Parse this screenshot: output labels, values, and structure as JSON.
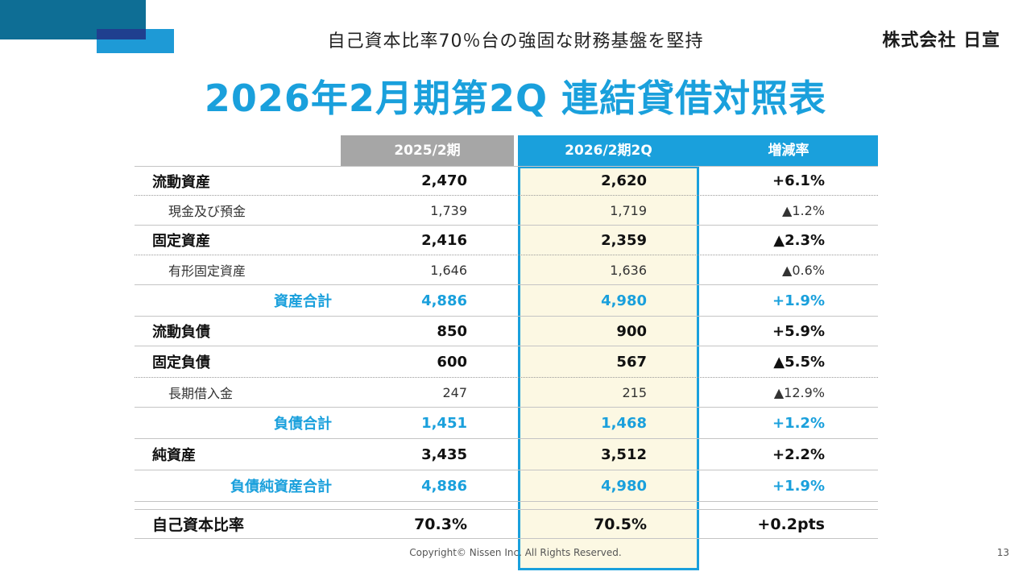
{
  "header": {
    "subtitle": "自己資本比率70％台の強固な財務基盤を堅持",
    "company": "株式会社 日宣",
    "title": "2026年2月期第2Q 連結貸借対照表"
  },
  "table": {
    "columns": {
      "prev": "2025/2期",
      "current": "2026/2期2Q",
      "rate": "増減率"
    },
    "rows": [
      {
        "label": "流動資産",
        "prev": "2,470",
        "current": "2,620",
        "rate": "+6.1%"
      },
      {
        "label": "現金及び預金",
        "prev": "1,739",
        "current": "1,719",
        "rate": "▲1.2%"
      },
      {
        "label": "固定資産",
        "prev": "2,416",
        "current": "2,359",
        "rate": "▲2.3%"
      },
      {
        "label": "有形固定資産",
        "prev": "1,646",
        "current": "1,636",
        "rate": "▲0.6%"
      },
      {
        "label": "資産合計",
        "prev": "4,886",
        "current": "4,980",
        "rate": "+1.9%"
      },
      {
        "label": "流動負債",
        "prev": "850",
        "current": "900",
        "rate": "+5.9%"
      },
      {
        "label": "固定負債",
        "prev": "600",
        "current": "567",
        "rate": "▲5.5%"
      },
      {
        "label": "長期借入金",
        "prev": "247",
        "current": "215",
        "rate": "▲12.9%"
      },
      {
        "label": "負債合計",
        "prev": "1,451",
        "current": "1,468",
        "rate": "+1.2%"
      },
      {
        "label": "純資産",
        "prev": "3,435",
        "current": "3,512",
        "rate": "+2.2%"
      },
      {
        "label": "負債純資産合計",
        "prev": "4,886",
        "current": "4,980",
        "rate": "+1.9%"
      },
      {
        "label": "自己資本比率",
        "prev": "70.3%",
        "current": "70.5%",
        "rate": "+0.2pts"
      }
    ]
  },
  "footer": {
    "copyright": "Copyright© Nissen Inc. All Rights Reserved.",
    "page": "13"
  },
  "colors": {
    "accent": "#1aa0dc",
    "highlight_bg": "#fcf8e3",
    "prev_header": "#a6a6a6"
  }
}
